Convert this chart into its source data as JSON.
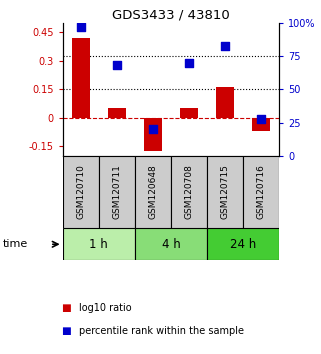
{
  "title": "GDS3433 / 43810",
  "samples": [
    "GSM120710",
    "GSM120711",
    "GSM120648",
    "GSM120708",
    "GSM120715",
    "GSM120716"
  ],
  "log10_ratio": [
    0.42,
    0.05,
    -0.175,
    0.05,
    0.16,
    -0.07
  ],
  "percentile_rank": [
    97,
    68,
    20,
    70,
    83,
    28
  ],
  "bar_color": "#cc0000",
  "dot_color": "#0000cc",
  "ylim_left": [
    -0.2,
    0.5
  ],
  "ylim_right": [
    0,
    100
  ],
  "yticks_left": [
    -0.15,
    0.0,
    0.15,
    0.3,
    0.45
  ],
  "yticks_right": [
    0,
    25,
    50,
    75,
    100
  ],
  "ytick_labels_left": [
    "-0.15",
    "0",
    "0.15",
    "0.3",
    "0.45"
  ],
  "ytick_labels_right": [
    "0",
    "25",
    "50",
    "75",
    "100%"
  ],
  "hline_dotted_pct": [
    50,
    75
  ],
  "zero_line_color": "#cc0000",
  "dotted_color": "#000000",
  "time_groups": [
    {
      "label": "1 h",
      "start": 0,
      "end": 2,
      "color": "#bbeeaa"
    },
    {
      "label": "4 h",
      "start": 2,
      "end": 4,
      "color": "#88dd77"
    },
    {
      "label": "24 h",
      "start": 4,
      "end": 6,
      "color": "#44cc33"
    }
  ],
  "legend_items": [
    {
      "label": "log10 ratio",
      "color": "#cc0000"
    },
    {
      "label": "percentile rank within the sample",
      "color": "#0000cc"
    }
  ],
  "sample_box_color": "#cccccc",
  "bar_width": 0.5,
  "dot_size": 35,
  "time_label": "time"
}
